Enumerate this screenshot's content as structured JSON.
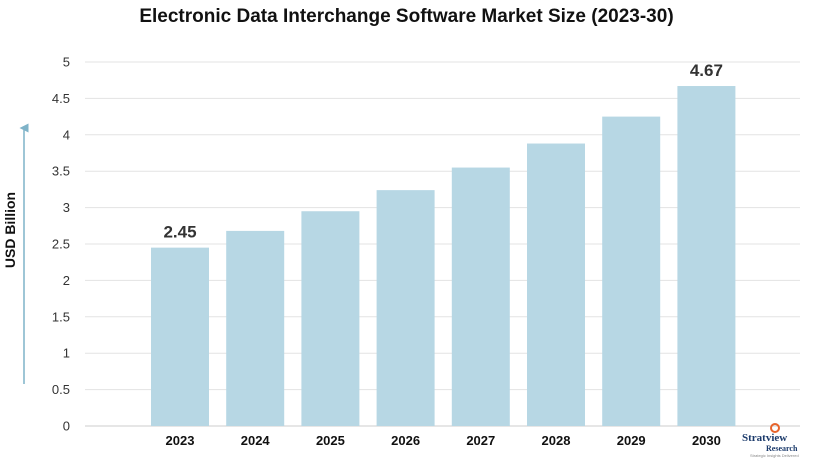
{
  "chart_data": {
    "type": "bar",
    "title": "Electronic Data Interchange Software Market Size (2023-30)",
    "ylabel": "USD Billion",
    "xlabel": "",
    "categories": [
      "2023",
      "2024",
      "2025",
      "2026",
      "2027",
      "2028",
      "2029",
      "2030"
    ],
    "values": [
      2.45,
      2.68,
      2.95,
      3.24,
      3.55,
      3.88,
      4.25,
      4.67
    ],
    "data_labels": [
      {
        "category": "2023",
        "text": "2.45"
      },
      {
        "category": "2030",
        "text": "4.67"
      }
    ],
    "ylim": [
      0,
      5
    ],
    "yticks": [
      "0",
      "0.5",
      "1",
      "1.5",
      "2",
      "2.5",
      "3",
      "3.5",
      "4",
      "4.5",
      "5"
    ],
    "grid": true,
    "bar_color": "#b7d7e4",
    "grid_color": "#e3e3e3",
    "axis_arrow_color": "#7fb3c8"
  },
  "brand": {
    "name": "Stratview",
    "sub": "Research",
    "tagline": "Strategic Insights Delivered"
  }
}
